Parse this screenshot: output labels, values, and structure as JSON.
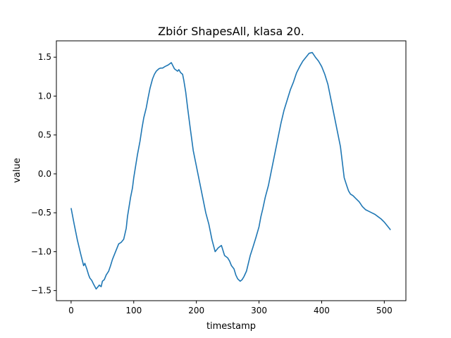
{
  "chart_data": {
    "type": "line",
    "title": "Zbiór ShapesAll, klasa 20.",
    "xlabel": "timestamp",
    "ylabel": "value",
    "xlim": [
      -23.5,
      534.5
    ],
    "ylim": [
      -1.63,
      1.71
    ],
    "x_ticks": [
      0,
      100,
      200,
      300,
      400,
      500
    ],
    "y_ticks": [
      -1.5,
      -1.0,
      -0.5,
      0.0,
      0.5,
      1.0,
      1.5
    ],
    "x_tick_labels": [
      "0",
      "100",
      "200",
      "300",
      "400",
      "500"
    ],
    "y_tick_labels": [
      "−1.5",
      "−1.0",
      "−0.5",
      "0.0",
      "0.5",
      "1.0",
      "1.5"
    ],
    "grid": false,
    "line_color": "#1f77b4",
    "series": [
      {
        "x": [
          0,
          5,
          10,
          15,
          20,
          22,
          25,
          28,
          30,
          33,
          36,
          40,
          43,
          45,
          48,
          50,
          53,
          56,
          60,
          63,
          66,
          70,
          73,
          76,
          80,
          84,
          88,
          90,
          92,
          95,
          98,
          100,
          103,
          106,
          110,
          113,
          116,
          120,
          123,
          126,
          130,
          133,
          136,
          140,
          143,
          146,
          150,
          155,
          160,
          165,
          170,
          172,
          175,
          178,
          180,
          183,
          186,
          190,
          195,
          200,
          205,
          210,
          215,
          220,
          225,
          230,
          235,
          240,
          245,
          250,
          253,
          256,
          260,
          263,
          266,
          270,
          273,
          276,
          280,
          283,
          286,
          290,
          295,
          300,
          303,
          306,
          310,
          315,
          320,
          325,
          330,
          335,
          340,
          345,
          350,
          355,
          360,
          365,
          370,
          375,
          380,
          385,
          390,
          395,
          400,
          405,
          410,
          415,
          420,
          425,
          430,
          433,
          436,
          440,
          443,
          446,
          450,
          455,
          460,
          465,
          470,
          475,
          480,
          485,
          490,
          495,
          500,
          503,
          506,
          510
        ],
        "y": [
          -0.44,
          -0.65,
          -0.85,
          -1.02,
          -1.18,
          -1.15,
          -1.22,
          -1.3,
          -1.34,
          -1.37,
          -1.42,
          -1.48,
          -1.45,
          -1.43,
          -1.45,
          -1.38,
          -1.36,
          -1.3,
          -1.25,
          -1.18,
          -1.1,
          -1.02,
          -0.96,
          -0.9,
          -0.88,
          -0.84,
          -0.7,
          -0.55,
          -0.45,
          -0.3,
          -0.18,
          -0.05,
          0.1,
          0.25,
          0.42,
          0.58,
          0.72,
          0.85,
          0.98,
          1.1,
          1.22,
          1.28,
          1.32,
          1.35,
          1.36,
          1.36,
          1.38,
          1.4,
          1.43,
          1.35,
          1.32,
          1.34,
          1.3,
          1.28,
          1.2,
          1.05,
          0.85,
          0.6,
          0.3,
          0.1,
          -0.1,
          -0.3,
          -0.5,
          -0.65,
          -0.85,
          -1.0,
          -0.95,
          -0.92,
          -1.05,
          -1.08,
          -1.12,
          -1.18,
          -1.22,
          -1.3,
          -1.35,
          -1.38,
          -1.36,
          -1.32,
          -1.25,
          -1.15,
          -1.05,
          -0.95,
          -0.82,
          -0.68,
          -0.55,
          -0.45,
          -0.3,
          -0.15,
          0.05,
          0.25,
          0.45,
          0.65,
          0.82,
          0.95,
          1.08,
          1.18,
          1.3,
          1.38,
          1.45,
          1.5,
          1.55,
          1.56,
          1.5,
          1.45,
          1.38,
          1.28,
          1.15,
          0.95,
          0.75,
          0.55,
          0.35,
          0.15,
          -0.05,
          -0.15,
          -0.22,
          -0.26,
          -0.28,
          -0.32,
          -0.36,
          -0.42,
          -0.46,
          -0.48,
          -0.5,
          -0.52,
          -0.55,
          -0.58,
          -0.62,
          -0.65,
          -0.68,
          -0.72
        ]
      }
    ]
  }
}
